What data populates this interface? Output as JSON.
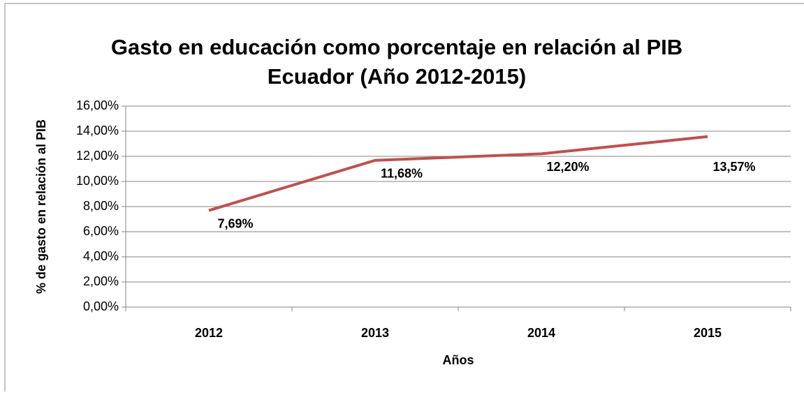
{
  "chart_data": {
    "type": "line",
    "title": "Gasto en educación como porcentaje en relación al PIB",
    "subtitle": "Ecuador (Año 2012-2015)",
    "x_label": "Años",
    "y_label": "% de gasto en relación al PIB",
    "categories": [
      "2012",
      "2013",
      "2014",
      "2015"
    ],
    "series": [
      {
        "name": "Gasto en educación",
        "color": "#c0504d",
        "values": [
          7.69,
          11.68,
          12.2,
          13.57
        ],
        "value_labels": [
          "7,69%",
          "11,68%",
          "12,20%",
          "13,57%"
        ]
      }
    ],
    "ylim": [
      0,
      16
    ],
    "yticks": [
      {
        "value": 0,
        "label": "0,00%"
      },
      {
        "value": 2,
        "label": "2,00%"
      },
      {
        "value": 4,
        "label": "4,00%"
      },
      {
        "value": 6,
        "label": "6,00%"
      },
      {
        "value": 8,
        "label": "8,00%"
      },
      {
        "value": 10,
        "label": "10,00%"
      },
      {
        "value": 12,
        "label": "12,00%"
      },
      {
        "value": 14,
        "label": "14,00%"
      },
      {
        "value": 16,
        "label": "16,00%"
      }
    ],
    "grid": true
  }
}
